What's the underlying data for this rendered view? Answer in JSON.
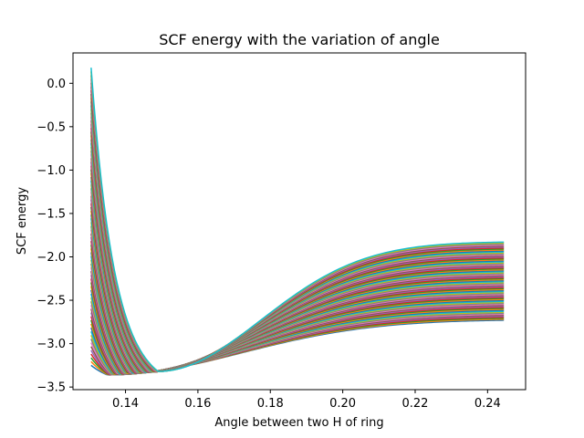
{
  "chart_data": {
    "type": "line",
    "title": "SCF energy with the variation of angle",
    "xlabel": "Angle between two H of ring",
    "ylabel": "SCF energy",
    "xlim": [
      0.1255,
      0.2505
    ],
    "ylim": [
      -3.53,
      0.35
    ],
    "xticks": [
      0.14,
      0.16,
      0.18,
      0.2,
      0.22,
      0.24
    ],
    "xtick_labels": [
      "0.14",
      "0.16",
      "0.18",
      "0.20",
      "0.22",
      "0.24"
    ],
    "yticks": [
      0.0,
      -0.5,
      -1.0,
      -1.5,
      -2.0,
      -2.5,
      -3.0,
      -3.5
    ],
    "ytick_labels": [
      "0.0",
      "−0.5",
      "−1.0",
      "−1.5",
      "−2.0",
      "−2.5",
      "−3.0",
      "−3.5"
    ],
    "grid": false,
    "legend": "none",
    "x_range": [
      0.1305,
      0.2445
    ],
    "series_count": 80,
    "series_envelope": {
      "first": {
        "start": -3.25,
        "min_x": 0.135,
        "min_y": -3.36,
        "end": -2.73
      },
      "last": {
        "start": 0.18,
        "min_x": 0.149,
        "min_y": -3.32,
        "end": -1.83
      },
      "note_start_range": [
        -3.25,
        0.18
      ],
      "end_range": [
        -2.73,
        -1.83
      ]
    },
    "colors": [
      "#1f77b4",
      "#ff7f0e",
      "#2ca02c",
      "#d62728",
      "#9467bd",
      "#8c564b",
      "#e377c2",
      "#7f7f7f",
      "#bcbd22",
      "#17becf"
    ]
  }
}
